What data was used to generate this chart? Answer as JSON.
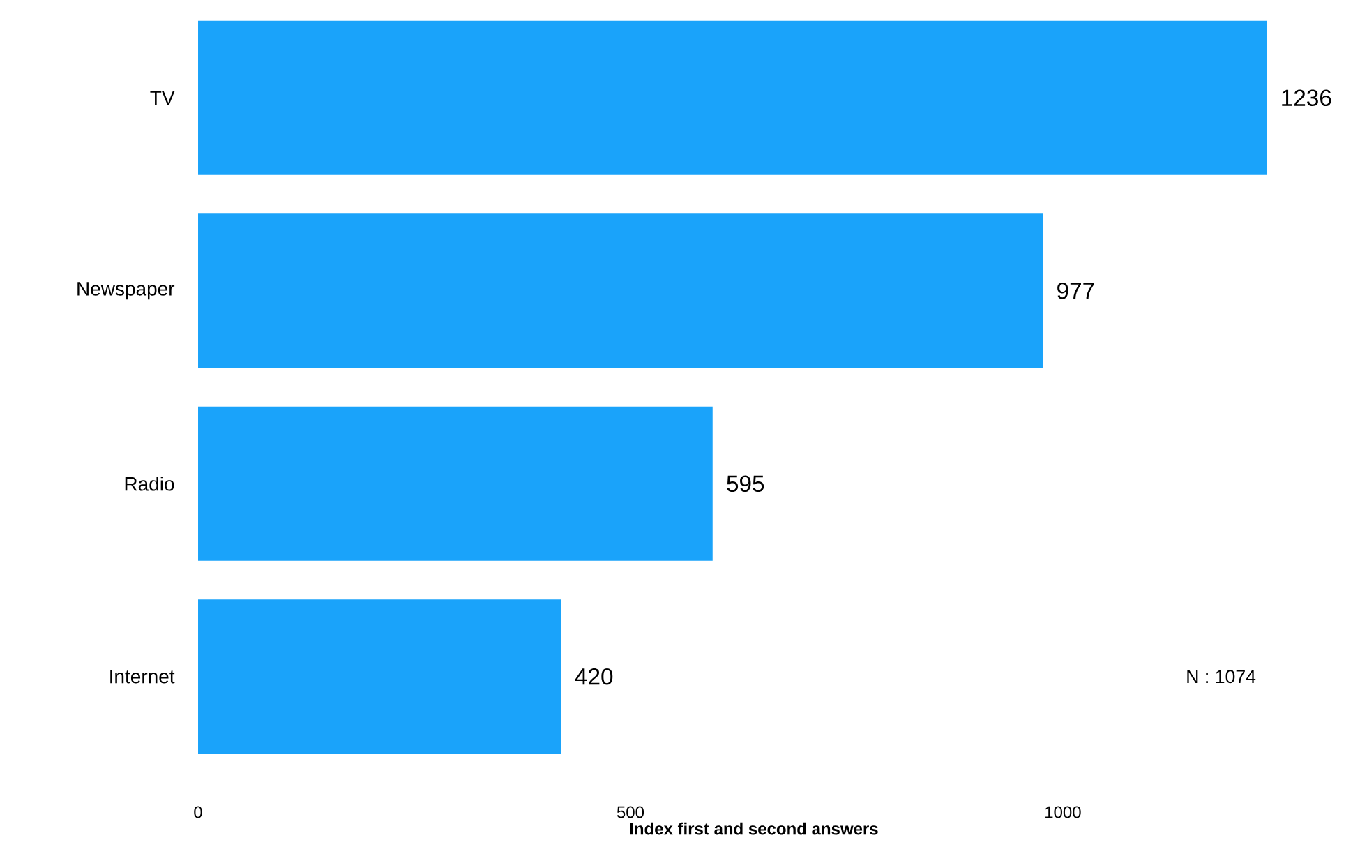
{
  "chart_data": {
    "type": "bar",
    "orientation": "horizontal",
    "categories": [
      "TV",
      "Newspaper",
      "Radio",
      "Internet"
    ],
    "values": [
      1236,
      977,
      595,
      420
    ],
    "color": "#1aa3fa",
    "xlim": [
      0,
      1236
    ],
    "xticks": [
      0,
      500,
      1000
    ],
    "xlabel": "Index first and second answers",
    "data_labels": true,
    "annotations": [
      "N : 1074"
    ]
  }
}
